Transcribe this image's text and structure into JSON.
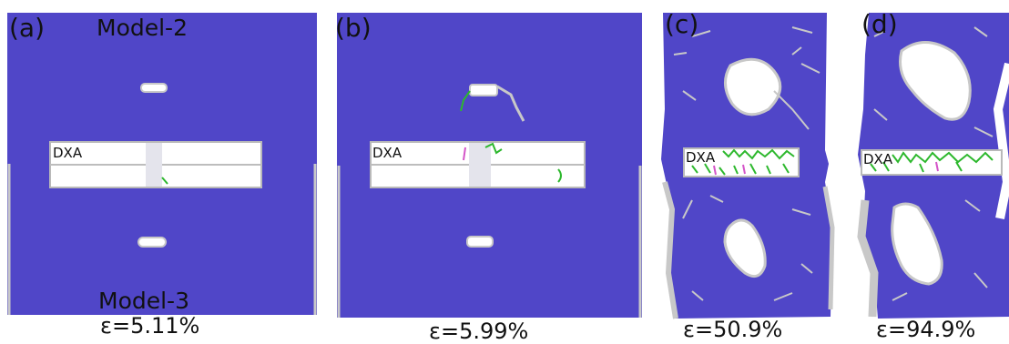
{
  "colors": {
    "atoms": "#5046c8",
    "atoms_dark": "#3f38b0",
    "defect": "#c8c8c8",
    "dislocation": "#2db82d",
    "stacking": "#d455c8"
  },
  "panels": [
    {
      "label": "(a)",
      "top_title": "Model-2",
      "bottom_title": "Model-3",
      "dxa": "DXA",
      "strain": "ε=5.11%"
    },
    {
      "label": "(b)",
      "dxa": "DXA",
      "strain": "ε=5.99%"
    },
    {
      "label": "(c)",
      "dxa": "DXA",
      "strain": "ε=50.9%"
    },
    {
      "label": "(d)",
      "dxa": "DXA",
      "strain": "ε=94.9%"
    }
  ]
}
